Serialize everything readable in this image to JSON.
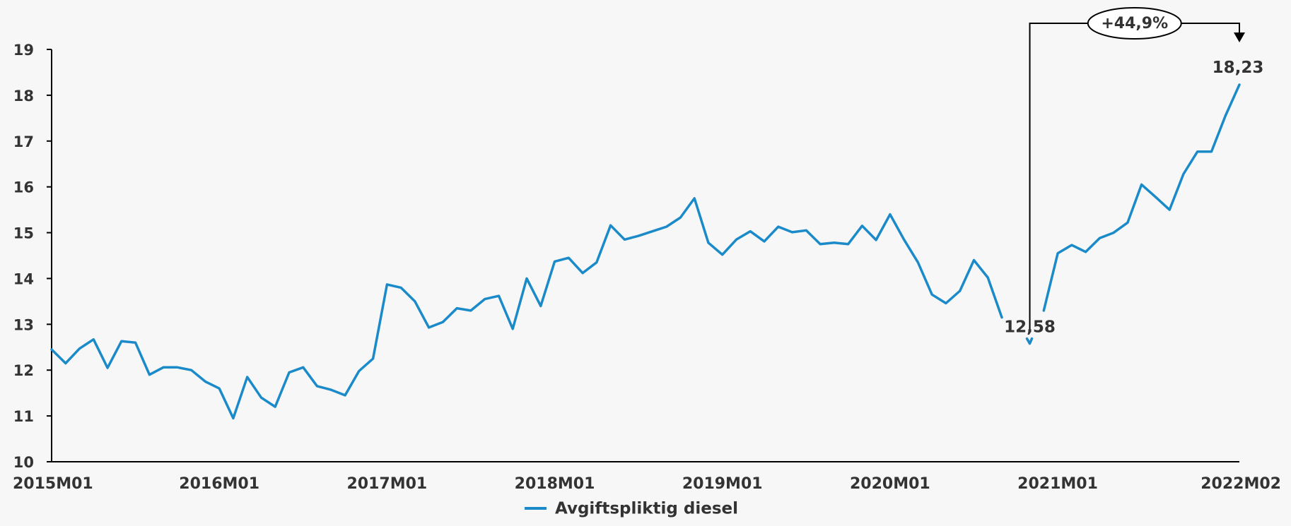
{
  "chart_data": {
    "type": "line",
    "title": "",
    "xlabel": "",
    "ylabel": "",
    "ylim": [
      10,
      19
    ],
    "yticks": [
      10,
      11,
      12,
      13,
      14,
      15,
      16,
      17,
      18,
      19
    ],
    "x_tick_labels": [
      "2015M01",
      "2016M01",
      "2017M01",
      "2018M01",
      "2019M01",
      "2020M01",
      "2021M01",
      "2022M02"
    ],
    "x_start": "2015M01",
    "x_end": "2022M02",
    "grid": false,
    "legend_position": "bottom-center",
    "series": [
      {
        "name": "Avgiftspliktig diesel",
        "color": "#1a8ac9",
        "x": [
          "2015M01",
          "2015M02",
          "2015M03",
          "2015M04",
          "2015M05",
          "2015M06",
          "2015M07",
          "2015M08",
          "2015M09",
          "2015M10",
          "2015M11",
          "2015M12",
          "2016M01",
          "2016M02",
          "2016M03",
          "2016M04",
          "2016M05",
          "2016M06",
          "2016M07",
          "2016M08",
          "2016M09",
          "2016M10",
          "2016M11",
          "2016M12",
          "2017M01",
          "2017M02",
          "2017M03",
          "2017M04",
          "2017M05",
          "2017M06",
          "2017M07",
          "2017M08",
          "2017M09",
          "2017M10",
          "2017M11",
          "2017M12",
          "2018M01",
          "2018M02",
          "2018M03",
          "2018M04",
          "2018M05",
          "2018M06",
          "2018M07",
          "2018M08",
          "2018M09",
          "2018M10",
          "2018M11",
          "2018M12",
          "2019M01",
          "2019M02",
          "2019M03",
          "2019M04",
          "2019M05",
          "2019M06",
          "2019M07",
          "2019M08",
          "2019M09",
          "2019M10",
          "2019M11",
          "2019M12",
          "2020M01",
          "2020M02",
          "2020M03",
          "2020M04",
          "2020M05",
          "2020M06",
          "2020M07",
          "2020M08",
          "2020M09",
          "2020M10",
          "2020M11",
          "2020M12",
          "2021M01",
          "2021M02",
          "2021M03",
          "2021M04",
          "2021M05",
          "2021M06",
          "2021M07",
          "2021M08",
          "2021M09",
          "2021M10",
          "2021M11",
          "2021M12",
          "2022M01",
          "2022M02"
        ],
        "values": [
          12.45,
          12.15,
          12.47,
          12.67,
          12.05,
          12.63,
          12.6,
          11.9,
          12.06,
          12.06,
          12.0,
          11.75,
          11.6,
          10.95,
          11.85,
          11.4,
          11.2,
          11.95,
          12.06,
          11.65,
          11.57,
          11.45,
          11.98,
          12.25,
          13.87,
          13.8,
          13.5,
          12.93,
          13.05,
          13.35,
          13.3,
          13.55,
          13.62,
          12.9,
          14.0,
          13.4,
          14.37,
          14.45,
          14.12,
          14.35,
          15.16,
          14.85,
          14.93,
          15.03,
          15.13,
          15.33,
          15.75,
          14.78,
          14.52,
          14.85,
          15.03,
          14.81,
          15.13,
          15.01,
          15.05,
          14.75,
          14.78,
          14.75,
          15.15,
          14.84,
          15.4,
          14.85,
          14.35,
          13.65,
          13.46,
          13.73,
          14.4,
          14.02,
          13.15,
          12.8,
          12.58,
          13.3,
          14.55,
          14.73,
          14.58,
          14.88,
          15.0,
          15.22,
          16.05,
          15.78,
          15.5,
          16.28,
          16.77,
          16.77,
          17.55,
          18.23
        ]
      }
    ],
    "annotations": {
      "start_label": "12,58",
      "end_label": "18,23",
      "growth_label": "+44,9%"
    }
  },
  "legend": {
    "label": "Avgiftspliktig diesel"
  }
}
